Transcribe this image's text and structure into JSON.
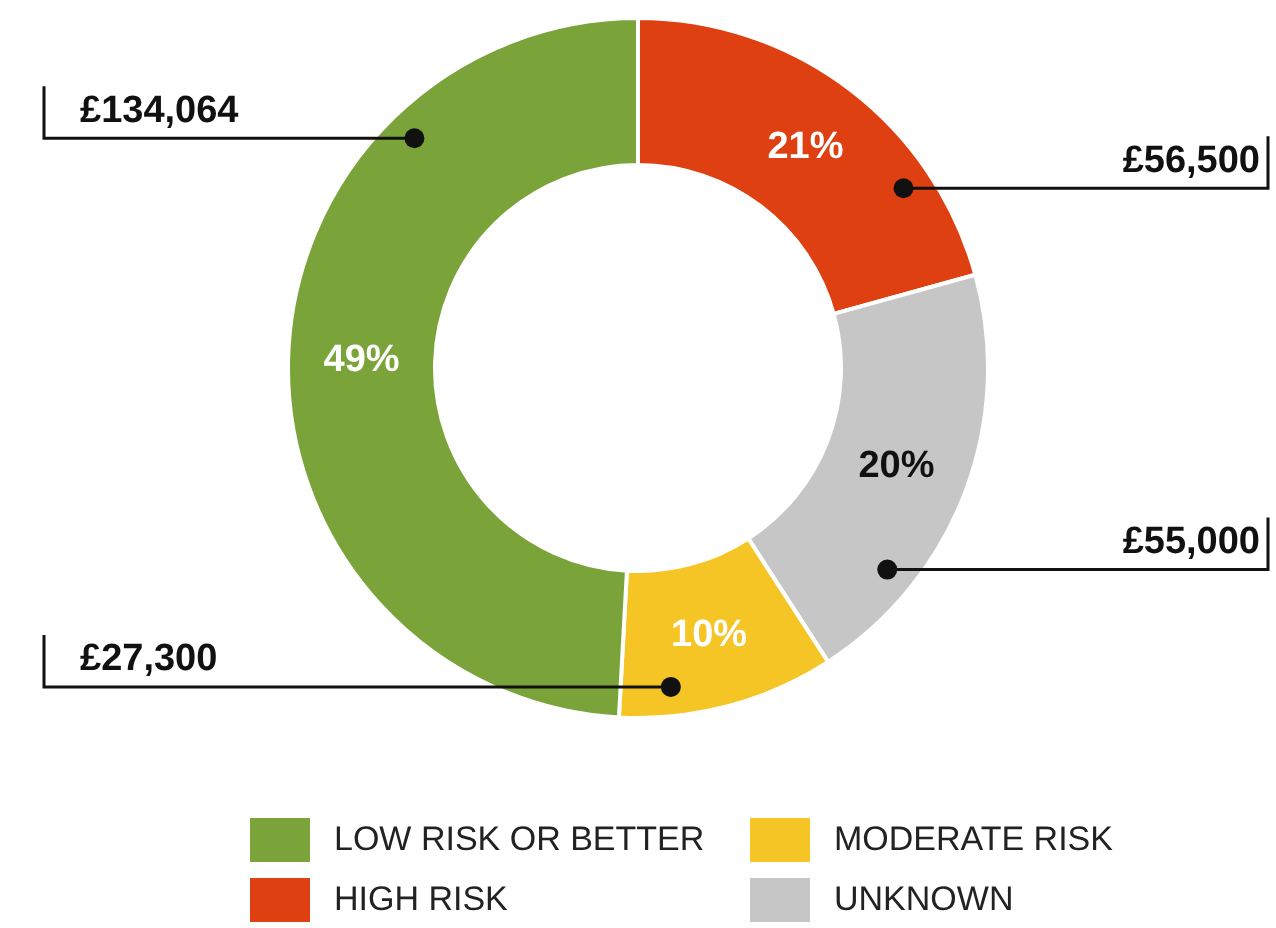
{
  "chart_data": {
    "type": "donut",
    "categories": [
      "HIGH RISK",
      "UNKNOWN",
      "MODERATE RISK",
      "LOW RISK OR BETTER"
    ],
    "values": [
      56500,
      55000,
      27300,
      134064
    ],
    "colors": [
      "#de4011",
      "#c6c6c6",
      "#f5c526",
      "#7aa33a"
    ],
    "value_labels": [
      "£56,500",
      "£55,000",
      "£27,300",
      "£134,064"
    ],
    "annotations": [
      "21%",
      "20%",
      "10%",
      "49%"
    ],
    "legend": "bottom"
  }
}
